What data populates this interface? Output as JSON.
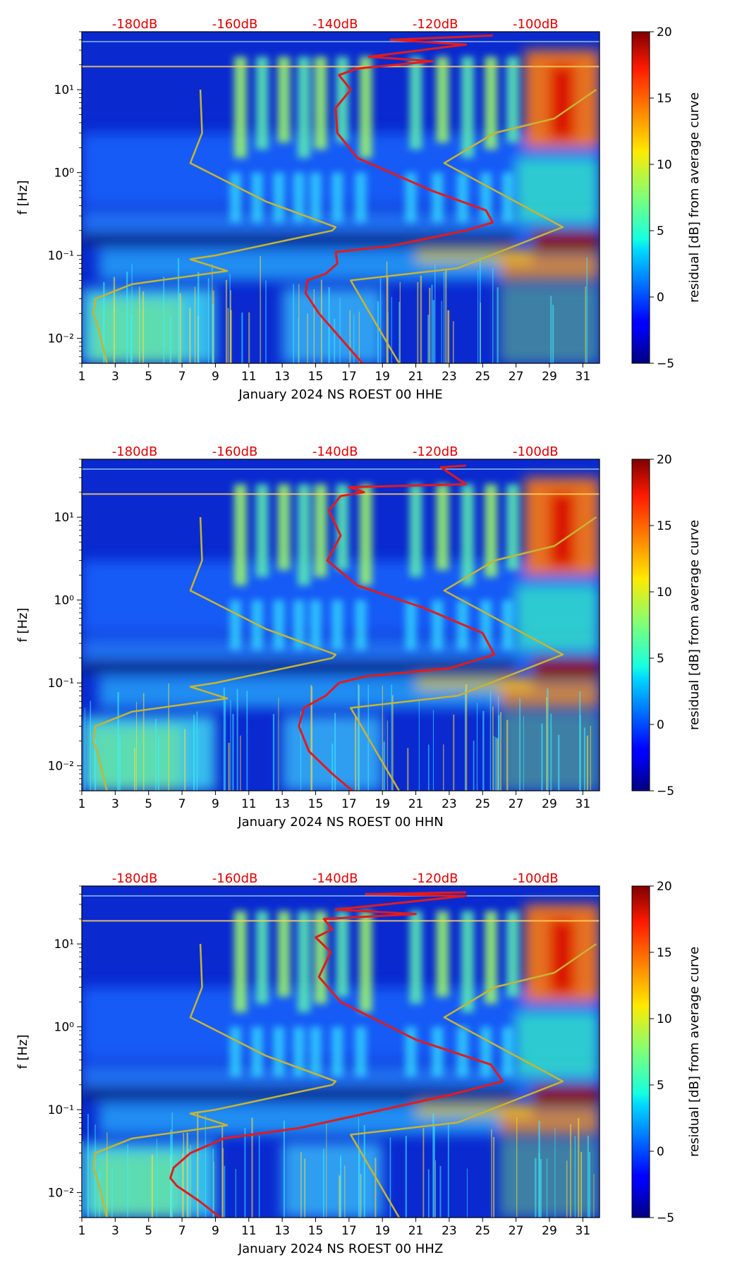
{
  "colors": {
    "ref_curve": "#e31a1c",
    "model_curve": "#c8b432",
    "db_label": "#e00000"
  },
  "colorbar": {
    "label": "residual [dB] from average curve",
    "ticks": [
      "20",
      "15",
      "10",
      "5",
      "0",
      "−5"
    ],
    "range": [
      -5,
      20
    ],
    "colormap": "jet"
  },
  "db_labels": [
    "-180dB",
    "-160dB",
    "-140dB",
    "-120dB",
    "-100dB"
  ],
  "x_ticks": [
    "1",
    "3",
    "5",
    "7",
    "9",
    "11",
    "13",
    "15",
    "17",
    "19",
    "21",
    "23",
    "25",
    "27",
    "29",
    "31"
  ],
  "y_ticks": [
    "10¹",
    "10⁰",
    "10⁻¹",
    "10⁻²"
  ],
  "ylabel": "f [Hz]",
  "chart_data": [
    {
      "type": "heatmap",
      "title": "",
      "xlabel": "January 2024 NS ROEST 00 HHE",
      "ylabel": "f [Hz]",
      "xlim": [
        1,
        32
      ],
      "ylim": [
        0.005,
        50
      ],
      "yscale": "log",
      "series": [
        {
          "name": "reference noise curve (top dB scale)",
          "x": [
            17.8,
            16.5,
            15.2,
            14.4,
            14.5,
            15.6,
            16.3,
            16.2,
            19.5,
            24.0,
            25.6,
            25.2,
            22.0,
            17.5,
            16.3,
            16.2,
            17.1,
            16.4,
            17.5,
            22.0,
            18.2,
            24.0,
            19.5,
            25.6
          ],
          "y": [
            0.005,
            0.01,
            0.02,
            0.035,
            0.05,
            0.06,
            0.08,
            0.11,
            0.13,
            0.2,
            0.25,
            0.35,
            0.6,
            1.5,
            3.0,
            6.0,
            10.0,
            15.0,
            18.0,
            22.0,
            25.0,
            35.0,
            40.0,
            45.0
          ]
        },
        {
          "name": "model curve (top dB scale)",
          "x": [
            2.5,
            2.0,
            1.7,
            1.8,
            4.0,
            9.7,
            7.5,
            9.0,
            16.0,
            16.2,
            12.0,
            7.5,
            8.2,
            8.1
          ],
          "y": [
            0.005,
            0.013,
            0.02,
            0.03,
            0.045,
            0.065,
            0.09,
            0.1,
            0.2,
            0.22,
            0.45,
            1.3,
            3.0,
            10.0
          ]
        },
        {
          "name": "model curve 2 (top dB scale)",
          "x": [
            20.0,
            17.1,
            23.5,
            29.8,
            22.7,
            25.7,
            29.3,
            31.8
          ],
          "y": [
            0.005,
            0.05,
            0.07,
            0.22,
            1.3,
            3.0,
            4.5,
            10.0
          ]
        }
      ]
    },
    {
      "type": "heatmap",
      "title": "",
      "xlabel": "January 2024 NS ROEST 00 HHN",
      "ylabel": "f [Hz]",
      "xlim": [
        1,
        32
      ],
      "ylim": [
        0.005,
        50
      ],
      "yscale": "log",
      "series": [
        {
          "name": "reference noise curve (top dB scale)",
          "x": [
            17.2,
            16.0,
            14.6,
            14.0,
            14.3,
            15.6,
            16.4,
            18.0,
            23.0,
            25.7,
            25.0,
            21.5,
            17.5,
            15.7,
            16.5,
            15.8,
            16.5,
            17.9,
            17.0,
            24.0,
            22.5,
            24.0
          ],
          "y": [
            0.005,
            0.008,
            0.015,
            0.03,
            0.05,
            0.07,
            0.1,
            0.12,
            0.15,
            0.22,
            0.4,
            0.8,
            1.5,
            3.0,
            6.0,
            12.0,
            18.0,
            20.0,
            23.0,
            25.0,
            40.0,
            42.0
          ]
        },
        {
          "name": "model curve (top dB scale)",
          "x": [
            2.5,
            2.0,
            1.7,
            1.8,
            4.0,
            9.7,
            7.5,
            9.0,
            16.0,
            16.2,
            12.0,
            7.5,
            8.2,
            8.1
          ],
          "y": [
            0.005,
            0.013,
            0.02,
            0.03,
            0.045,
            0.065,
            0.09,
            0.1,
            0.2,
            0.22,
            0.45,
            1.3,
            3.0,
            10.0
          ]
        },
        {
          "name": "model curve 2 (top dB scale)",
          "x": [
            20.0,
            17.1,
            23.5,
            29.8,
            22.7,
            25.7,
            29.3,
            31.8
          ],
          "y": [
            0.005,
            0.05,
            0.07,
            0.22,
            1.3,
            3.0,
            4.5,
            10.0
          ]
        }
      ]
    },
    {
      "type": "heatmap",
      "title": "",
      "xlabel": "January 2024 NS ROEST 00 HHZ",
      "ylabel": "f [Hz]",
      "xlim": [
        1,
        32
      ],
      "ylim": [
        0.005,
        50
      ],
      "yscale": "log",
      "series": [
        {
          "name": "reference noise curve (top dB scale)",
          "x": [
            9.3,
            8.0,
            6.7,
            6.3,
            6.5,
            7.5,
            9.5,
            14.0,
            18.0,
            23.0,
            26.2,
            25.5,
            21.0,
            16.5,
            15.2,
            15.9,
            15.0,
            16.0,
            15.5,
            21.0,
            16.2,
            24.0,
            18.0,
            24.0
          ],
          "y": [
            0.005,
            0.008,
            0.012,
            0.015,
            0.02,
            0.03,
            0.045,
            0.06,
            0.09,
            0.15,
            0.22,
            0.35,
            0.7,
            2.0,
            4.0,
            8.0,
            12.0,
            15.0,
            20.0,
            23.0,
            26.0,
            38.0,
            40.0,
            42.0
          ]
        },
        {
          "name": "model curve (top dB scale)",
          "x": [
            2.5,
            2.0,
            1.7,
            1.8,
            4.0,
            9.7,
            7.5,
            9.0,
            16.0,
            16.2,
            12.0,
            7.5,
            8.2,
            8.1
          ],
          "y": [
            0.005,
            0.013,
            0.02,
            0.03,
            0.045,
            0.065,
            0.09,
            0.1,
            0.2,
            0.22,
            0.45,
            1.3,
            3.0,
            10.0
          ]
        },
        {
          "name": "model curve 2 (top dB scale)",
          "x": [
            20.0,
            17.1,
            23.5,
            29.8,
            22.7,
            25.7,
            29.3,
            31.8
          ],
          "y": [
            0.005,
            0.05,
            0.07,
            0.22,
            1.3,
            3.0,
            4.5,
            10.0
          ]
        }
      ]
    }
  ]
}
